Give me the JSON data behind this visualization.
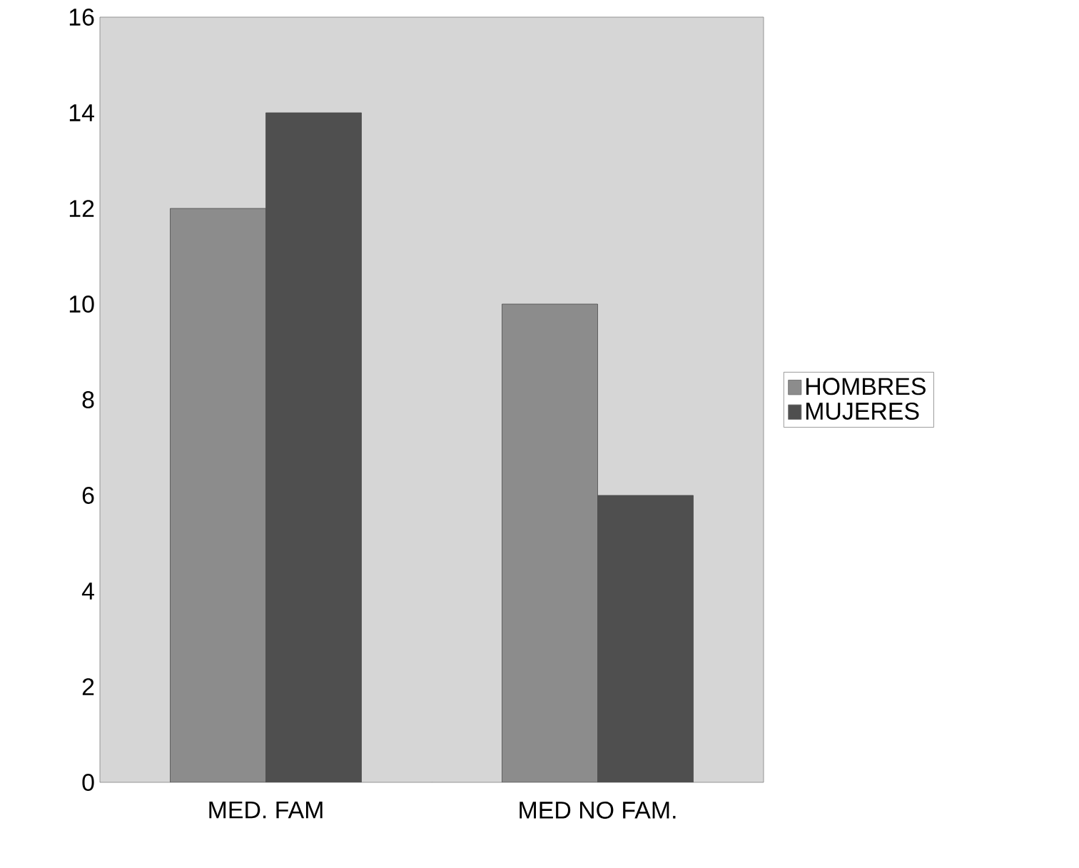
{
  "chart_data": {
    "type": "bar",
    "categories": [
      "MED. FAM",
      "MED NO FAM."
    ],
    "series": [
      {
        "name": "HOMBRES",
        "color": "#8c8c8c",
        "values": [
          12,
          10
        ]
      },
      {
        "name": "MUJERES",
        "color": "#4f4f4f",
        "values": [
          14,
          6
        ]
      }
    ],
    "ylim": [
      0,
      16
    ],
    "yticks": [
      0,
      2,
      4,
      6,
      8,
      10,
      12,
      14,
      16
    ],
    "grid": false,
    "legend": "right"
  }
}
